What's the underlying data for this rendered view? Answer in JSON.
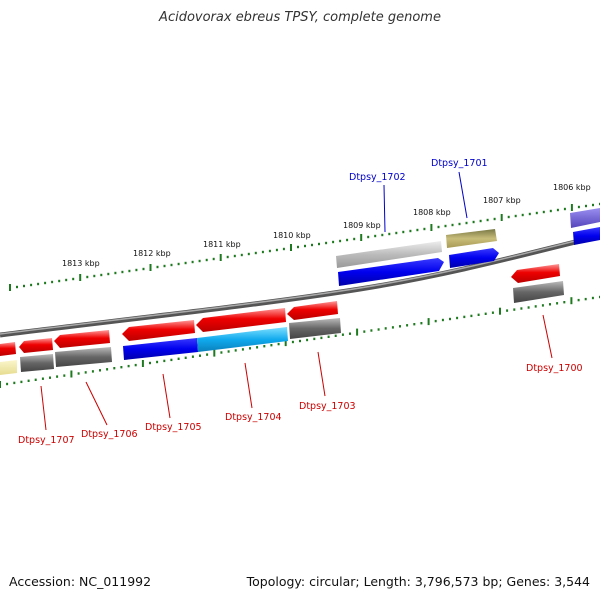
{
  "title": "Acidovorax ebreus TPSY, complete genome",
  "accession": "Accession: NC_011992",
  "summary": "Topology: circular; Length: 3,796,573 bp; Genes: 3,544",
  "kbp_labels": [
    "1813 kbp",
    "1812 kbp",
    "1811 kbp",
    "1810 kbp",
    "1809 kbp",
    "1808 kbp",
    "1807 kbp",
    "1806 kbp"
  ],
  "gene_labels": {
    "dtpsy_1707": "Dtpsy_1707",
    "dtpsy_1706": "Dtpsy_1706",
    "dtpsy_1705": "Dtpsy_1705",
    "dtpsy_1704": "Dtpsy_1704",
    "dtpsy_1703": "Dtpsy_1703",
    "dtpsy_1702": "Dtpsy_1702",
    "dtpsy_1701": "Dtpsy_1701",
    "dtpsy_1700": "Dtpsy_1700"
  },
  "colors": {
    "forward_label": "#0000cc",
    "reverse_label": "#cc0000",
    "tick": "#1e7a1e",
    "cds_red": "#ee0000",
    "cds_blue": "#0000ee",
    "cds_cyan": "#11aaee",
    "gray": "#666666",
    "light_gray": "#bbbbbb",
    "olive": "#a89a55",
    "yellow": "#eee6a0",
    "purple": "#6655cc"
  }
}
